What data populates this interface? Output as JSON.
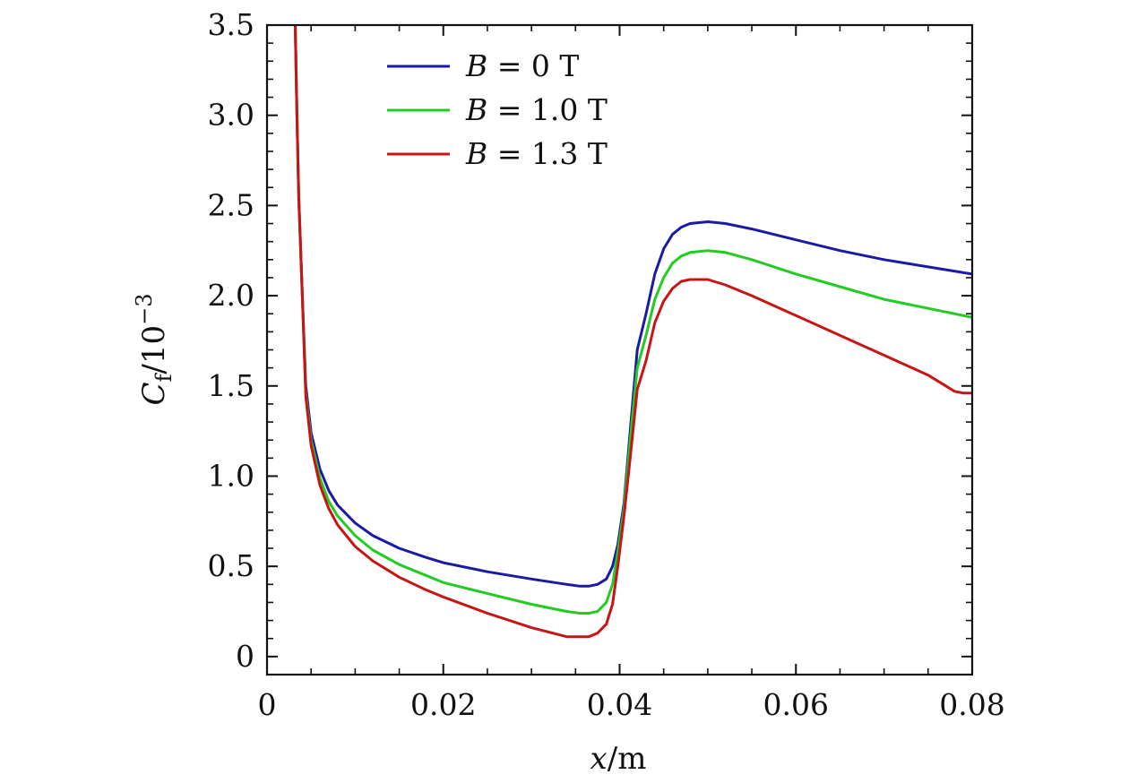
{
  "chart_data": {
    "type": "line",
    "title": "",
    "xlabel": {
      "var": "x",
      "unit": "/m"
    },
    "ylabel": {
      "var": "C",
      "sub": "f",
      "unit": "/10",
      "exp": "−3"
    },
    "xlim": [
      0,
      0.08
    ],
    "ylim": [
      -0.1,
      3.5
    ],
    "xticks": [
      {
        "value": 0,
        "label": "0"
      },
      {
        "value": 0.02,
        "label": "0.02"
      },
      {
        "value": 0.04,
        "label": "0.04"
      },
      {
        "value": 0.06,
        "label": "0.06"
      },
      {
        "value": 0.08,
        "label": "0.08"
      }
    ],
    "yticks": [
      {
        "value": 0,
        "label": "0"
      },
      {
        "value": 0.5,
        "label": "0.5"
      },
      {
        "value": 1.0,
        "label": "1.0"
      },
      {
        "value": 1.5,
        "label": "1.5"
      },
      {
        "value": 2.0,
        "label": "2.0"
      },
      {
        "value": 2.5,
        "label": "2.5"
      },
      {
        "value": 3.0,
        "label": "3.0"
      },
      {
        "value": 3.5,
        "label": "3.5"
      }
    ],
    "grid": false,
    "legend_position": "top-left",
    "series": [
      {
        "name": "B = 0 T",
        "legend": {
          "var": "B",
          "rest": " = 0  T"
        },
        "color": "#1a1aa6",
        "x": [
          0.0032,
          0.0034,
          0.0036,
          0.004,
          0.0044,
          0.005,
          0.006,
          0.007,
          0.008,
          0.01,
          0.012,
          0.015,
          0.018,
          0.02,
          0.025,
          0.03,
          0.034,
          0.0355,
          0.0365,
          0.0375,
          0.0385,
          0.0392,
          0.0398,
          0.0405,
          0.0412,
          0.042,
          0.043,
          0.044,
          0.045,
          0.046,
          0.047,
          0.048,
          0.05,
          0.052,
          0.055,
          0.06,
          0.065,
          0.07,
          0.075,
          0.08
        ],
        "y": [
          3.5,
          3.0,
          2.55,
          2.0,
          1.5,
          1.24,
          1.04,
          0.92,
          0.84,
          0.74,
          0.67,
          0.6,
          0.55,
          0.52,
          0.47,
          0.43,
          0.4,
          0.39,
          0.39,
          0.4,
          0.43,
          0.5,
          0.62,
          0.85,
          1.25,
          1.7,
          1.9,
          2.12,
          2.26,
          2.34,
          2.38,
          2.4,
          2.41,
          2.4,
          2.37,
          2.31,
          2.25,
          2.2,
          2.16,
          2.12
        ]
      },
      {
        "name": "B = 1.0 T",
        "legend": {
          "var": "B",
          "rest": " = 1.0  T"
        },
        "color": "#22cc22",
        "x": [
          0.0032,
          0.0034,
          0.0036,
          0.004,
          0.0044,
          0.005,
          0.006,
          0.007,
          0.008,
          0.01,
          0.012,
          0.015,
          0.018,
          0.02,
          0.025,
          0.03,
          0.034,
          0.0355,
          0.0365,
          0.0375,
          0.0385,
          0.0392,
          0.0398,
          0.0405,
          0.0412,
          0.042,
          0.043,
          0.044,
          0.045,
          0.046,
          0.047,
          0.048,
          0.05,
          0.052,
          0.055,
          0.06,
          0.065,
          0.07,
          0.075,
          0.08
        ],
        "y": [
          3.5,
          3.0,
          2.55,
          2.0,
          1.46,
          1.2,
          0.99,
          0.86,
          0.78,
          0.67,
          0.59,
          0.51,
          0.45,
          0.41,
          0.35,
          0.29,
          0.25,
          0.24,
          0.24,
          0.25,
          0.3,
          0.4,
          0.58,
          0.82,
          1.2,
          1.6,
          1.78,
          1.98,
          2.1,
          2.18,
          2.22,
          2.24,
          2.25,
          2.24,
          2.2,
          2.12,
          2.05,
          1.98,
          1.93,
          1.88
        ]
      },
      {
        "name": "B = 1.3 T",
        "legend": {
          "var": "B",
          "rest": " = 1.3  T"
        },
        "color": "#c81414",
        "x": [
          0.0032,
          0.0034,
          0.0036,
          0.004,
          0.0044,
          0.005,
          0.006,
          0.007,
          0.008,
          0.01,
          0.012,
          0.015,
          0.018,
          0.02,
          0.025,
          0.03,
          0.034,
          0.0355,
          0.0365,
          0.0375,
          0.0385,
          0.0392,
          0.0398,
          0.0405,
          0.0412,
          0.042,
          0.043,
          0.044,
          0.045,
          0.046,
          0.047,
          0.048,
          0.05,
          0.052,
          0.055,
          0.06,
          0.065,
          0.07,
          0.075,
          0.078,
          0.079,
          0.08
        ],
        "y": [
          3.5,
          3.0,
          2.55,
          2.0,
          1.44,
          1.17,
          0.95,
          0.82,
          0.73,
          0.61,
          0.53,
          0.44,
          0.37,
          0.33,
          0.24,
          0.16,
          0.11,
          0.11,
          0.11,
          0.13,
          0.18,
          0.29,
          0.5,
          0.78,
          1.1,
          1.48,
          1.64,
          1.85,
          1.97,
          2.04,
          2.08,
          2.09,
          2.09,
          2.06,
          2.0,
          1.89,
          1.78,
          1.67,
          1.56,
          1.47,
          1.46,
          1.46
        ]
      }
    ]
  }
}
